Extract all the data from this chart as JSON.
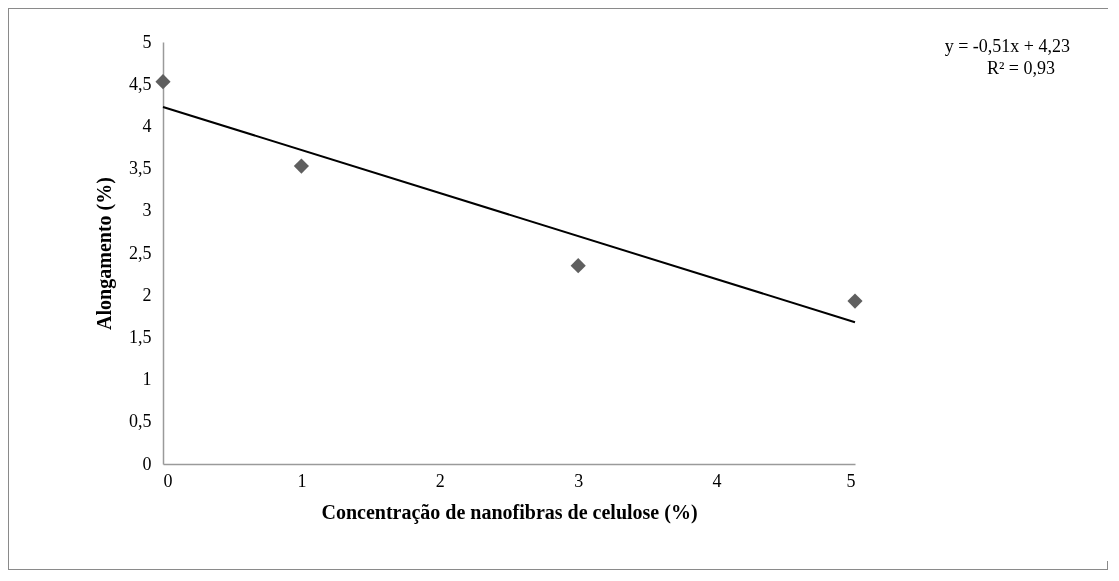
{
  "chart_data": {
    "type": "scatter",
    "xlabel": "Concentração de nanofibras de celulose (%)",
    "ylabel": "Alongamento (%)",
    "annotations": [
      "y = -0,51x + 4,23",
      "R² = 0,93"
    ],
    "xlim": [
      0,
      5
    ],
    "xticks": [
      0,
      1,
      2,
      3,
      4,
      5
    ],
    "ylim": [
      0,
      5
    ],
    "yticks": [
      0,
      {
        "value": 0.5,
        "label": "0,5"
      },
      1,
      {
        "value": 1.5,
        "label": "1,5"
      },
      2,
      {
        "value": 2.5,
        "label": "2,5"
      },
      3,
      {
        "value": 3.5,
        "label": "3,5"
      },
      4,
      {
        "value": 4.5,
        "label": "4,5"
      },
      5
    ],
    "grid": false,
    "marker": "diamond",
    "series": [
      {
        "type": "scatter",
        "color": "#5f5f5f",
        "x": [
          0,
          1,
          3,
          5
        ],
        "values": [
          4.53,
          3.53,
          2.35,
          1.93
        ]
      },
      {
        "type": "line",
        "color": "#000000",
        "x": [
          0,
          5
        ],
        "values": [
          4.23,
          1.68
        ],
        "marker": "none",
        "line_style": "solid"
      }
    ]
  }
}
